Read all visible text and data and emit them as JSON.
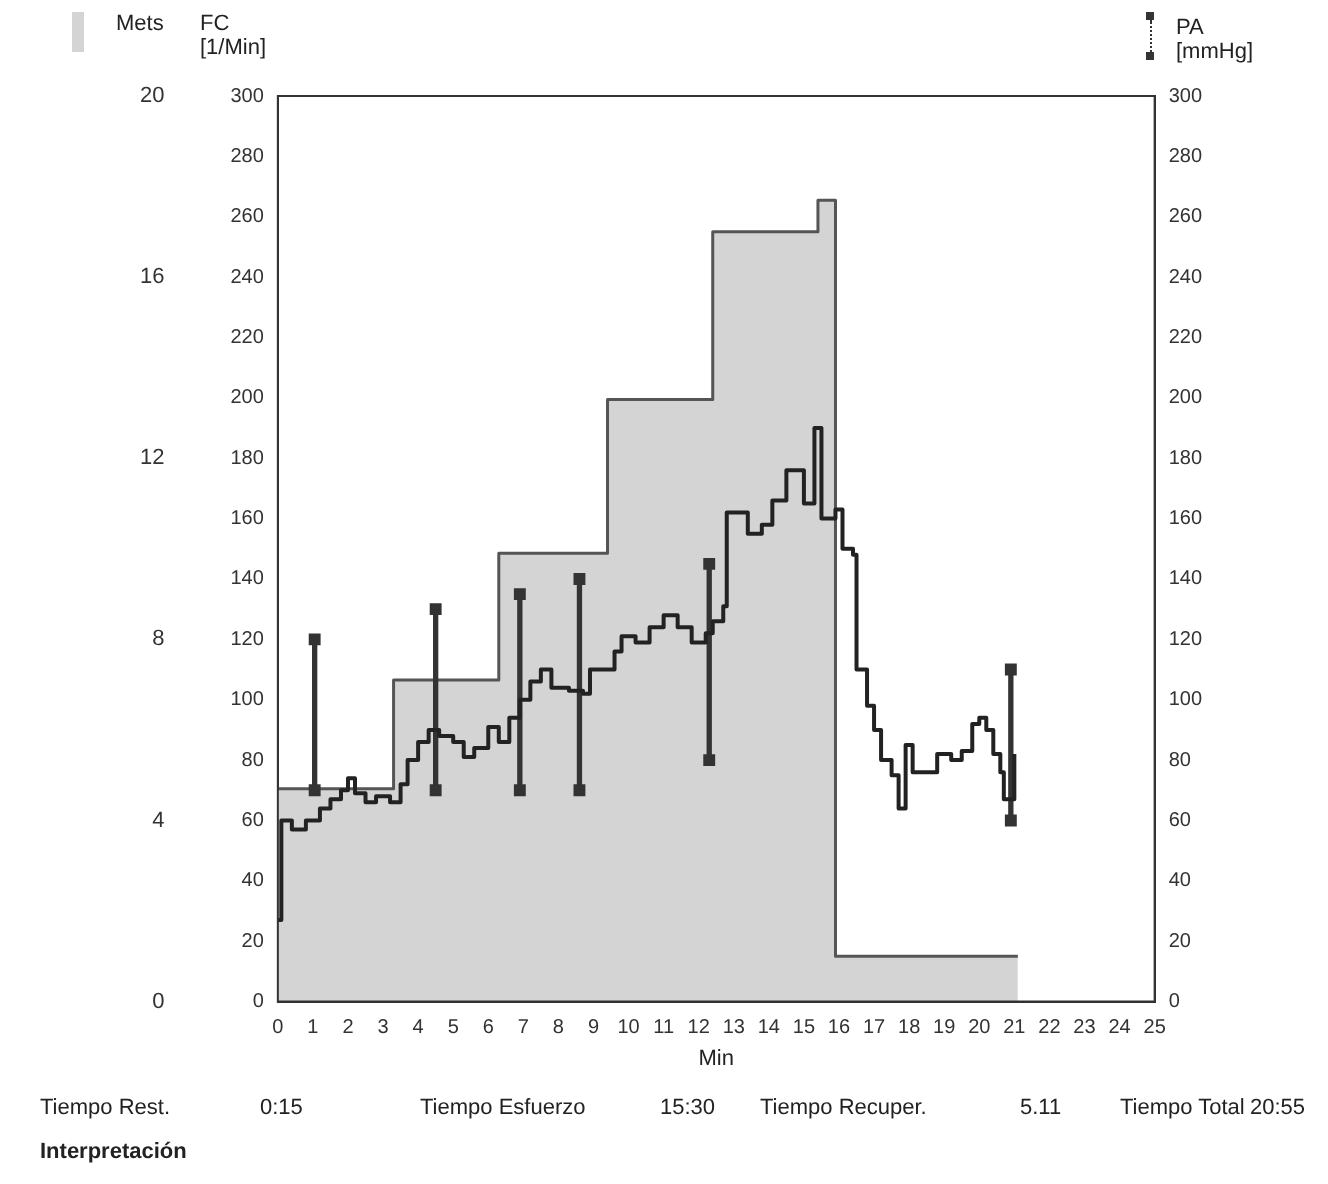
{
  "chart_data": {
    "type": "step",
    "xlabel": "Min",
    "ylabel": "FC [1/Min]",
    "y2label": "PA [mmHg]",
    "y3label": "Mets",
    "xlim": [
      0,
      25
    ],
    "xticks": [
      0,
      1,
      2,
      3,
      4,
      5,
      6,
      7,
      8,
      9,
      10,
      11,
      12,
      13,
      14,
      15,
      16,
      17,
      18,
      19,
      20,
      21,
      22,
      23,
      24,
      25
    ],
    "ylim": [
      0,
      300
    ],
    "yticks": [
      0,
      20,
      40,
      60,
      80,
      100,
      120,
      140,
      160,
      180,
      200,
      220,
      240,
      260,
      280,
      300
    ],
    "y2lim": [
      0,
      300
    ],
    "y2ticks": [
      0,
      20,
      40,
      60,
      80,
      100,
      120,
      140,
      160,
      180,
      200,
      220,
      240,
      260,
      280,
      300
    ],
    "y3lim": [
      0,
      20
    ],
    "y3ticks": [
      0,
      4,
      8,
      12,
      16,
      20
    ],
    "grid": false,
    "legend": false,
    "series": [
      {
        "type": "area",
        "axis": "y3",
        "color": "#d4d4d4",
        "x": [
          0,
          3.3,
          3.3,
          6.3,
          6.3,
          9.4,
          9.4,
          12.4,
          12.4,
          15.4,
          15.4,
          15.9,
          15.9,
          21.1
        ],
        "values": [
          4.7,
          4.7,
          7.1,
          7.1,
          9.9,
          9.9,
          13.3,
          13.3,
          17,
          17,
          17.7,
          17.7,
          1,
          1
        ]
      },
      {
        "type": "bar",
        "axis": "y2",
        "color": "#333333",
        "x": [
          1.05,
          4.5,
          6.9,
          8.6,
          12.3,
          20.9
        ],
        "base": [
          70,
          70,
          70,
          70,
          80,
          60
        ],
        "values": [
          50,
          60,
          65,
          70,
          65,
          50
        ]
      },
      {
        "type": "scatter",
        "axis": "y2",
        "color": "#333333",
        "marker": "square",
        "x": [
          1.05,
          4.5,
          6.9,
          8.6,
          12.3,
          20.9
        ],
        "values": [
          120,
          130,
          135,
          140,
          145,
          110
        ]
      },
      {
        "type": "scatter",
        "axis": "y2",
        "color": "#333333",
        "marker": "square",
        "x": [
          1.05,
          4.5,
          6.9,
          8.6,
          12.3,
          20.9
        ],
        "values": [
          70,
          70,
          70,
          70,
          80,
          60
        ]
      },
      {
        "color": "#222222",
        "x": [
          0,
          0.1,
          0.4,
          0.8,
          1.2,
          1.5,
          1.8,
          2,
          2.2,
          2.5,
          2.8,
          3.2,
          3.5,
          3.7,
          4,
          4.3,
          4.6,
          5,
          5.3,
          5.6,
          6,
          6.3,
          6.6,
          6.9,
          7.2,
          7.5,
          7.8,
          8.3,
          8.7,
          8.9,
          9.3,
          9.6,
          9.8,
          10.2,
          10.6,
          11,
          11.4,
          11.8,
          12.2,
          12.4,
          12.7,
          12.8,
          13.2,
          13.4,
          13.8,
          14.1,
          14.5,
          14.9,
          15,
          15.3,
          15.5,
          15.9,
          16.1,
          16.4,
          16.5,
          16.8,
          17,
          17.2,
          17.5,
          17.7,
          17.9,
          18.1,
          18.6,
          18.8,
          19.2,
          19.5,
          19.8,
          20,
          20.2,
          20.4,
          20.6,
          20.7,
          20.9,
          21
        ],
        "values": [
          27,
          60,
          57,
          60,
          64,
          67,
          70,
          74,
          69,
          66,
          68,
          66,
          72,
          80,
          86,
          90,
          88,
          86,
          81,
          84,
          91,
          86,
          94,
          100,
          106,
          110,
          104,
          103,
          102,
          110,
          110,
          116,
          121,
          119,
          124,
          128,
          124,
          119,
          122,
          126,
          131,
          162,
          162,
          155,
          158,
          166,
          176,
          176,
          165,
          190,
          160,
          163,
          150,
          148,
          110,
          98,
          90,
          80,
          75,
          64,
          85,
          76,
          76,
          82,
          80,
          83,
          92,
          94,
          90,
          82,
          76,
          67,
          67,
          82
        ]
      }
    ],
    "annotations": [
      "Tiempo Rest.",
      "0:15",
      "Tiempo Esfuerzo",
      "15:30",
      "Tiempo Recuper.",
      "5.11",
      "Tiempo Total",
      "20:55",
      "Interpretación"
    ]
  }
}
